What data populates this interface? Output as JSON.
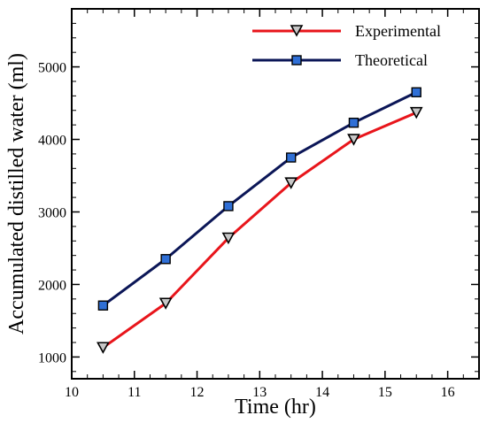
{
  "chart_data": {
    "type": "line",
    "title": "",
    "xlabel": "Time (hr)",
    "ylabel": "Accumulated distilled water (ml)",
    "xlim": [
      10,
      16.5
    ],
    "ylim": [
      700,
      5800
    ],
    "xticks": [
      10,
      11,
      12,
      13,
      14,
      15,
      16
    ],
    "yticks": [
      1000,
      2000,
      3000,
      4000,
      5000
    ],
    "grid": false,
    "legend_position": "top-right",
    "series": [
      {
        "name": "Experimental",
        "color": "#e8151b",
        "marker": "triangle-down",
        "marker_fill": "#c7c7c7",
        "x": [
          10.5,
          11.5,
          12.5,
          13.5,
          14.5,
          15.5
        ],
        "y": [
          1130,
          1740,
          2640,
          3400,
          4000,
          4370
        ]
      },
      {
        "name": "Theoretical",
        "color": "#0b1657",
        "marker": "square",
        "marker_fill": "#2f6fd6",
        "x": [
          10.5,
          11.5,
          12.5,
          13.5,
          14.5,
          15.5
        ],
        "y": [
          1710,
          2350,
          3080,
          3750,
          4230,
          4650
        ]
      }
    ]
  }
}
